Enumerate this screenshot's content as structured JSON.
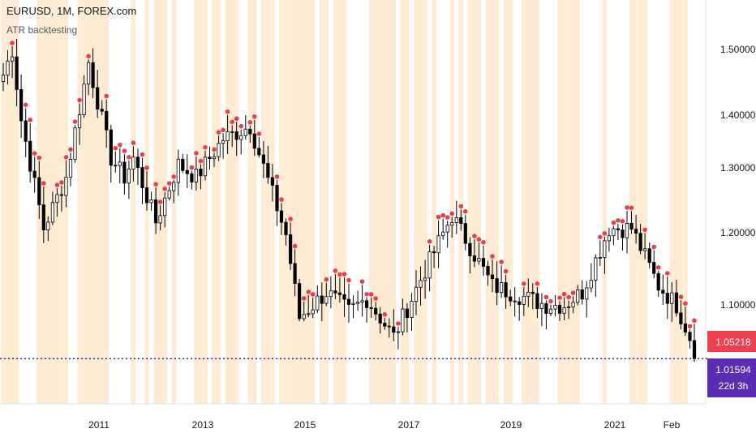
{
  "header": {
    "symbol_line": "EURUSD, 1M, FOREX.com",
    "indicator_name": "ATR backtesting"
  },
  "price_tags": {
    "last_bar": "1.05218",
    "current": "1.01594",
    "countdown": "22d 3h"
  },
  "colors": {
    "up_body": "#ffffff",
    "down_body": "#000000",
    "candle_outline": "#000000",
    "marker": "#e5404f",
    "highlight_band": "#fdebd3",
    "current_line": "#2a2e8f",
    "tag_red": "#ef4050",
    "tag_purple": "#5b2db2"
  },
  "chart_data": {
    "type": "candlestick",
    "title": "EURUSD, 1M, FOREX.com",
    "indicator": "ATR backtesting",
    "y_ticks": [
      "1.50000",
      "1.40000",
      "1.30000",
      "1.20000",
      "1.10000"
    ],
    "x_ticks": [
      "2011",
      "2013",
      "2015",
      "2017",
      "2019",
      "2021",
      "Feb"
    ],
    "ylim": [
      0.985,
      1.555
    ],
    "last_price": 1.05218,
    "current_price": 1.01594,
    "path_key_points": [
      [
        "2009-09",
        1.46
      ],
      [
        "2009-11",
        1.5
      ],
      [
        "2010-01",
        1.39
      ],
      [
        "2010-06",
        1.22
      ],
      [
        "2010-11",
        1.3
      ],
      [
        "2011-04",
        1.48
      ],
      [
        "2011-09",
        1.33
      ],
      [
        "2011-12",
        1.3
      ],
      [
        "2012-02",
        1.33
      ],
      [
        "2012-07",
        1.23
      ],
      [
        "2012-12",
        1.32
      ],
      [
        "2013-04",
        1.3
      ],
      [
        "2013-10",
        1.36
      ],
      [
        "2014-04",
        1.38
      ],
      [
        "2014-12",
        1.21
      ],
      [
        "2015-03",
        1.08
      ],
      [
        "2015-09",
        1.12
      ],
      [
        "2016-02",
        1.09
      ],
      [
        "2016-06",
        1.11
      ],
      [
        "2016-12",
        1.05
      ],
      [
        "2017-06",
        1.14
      ],
      [
        "2018-01",
        1.24
      ],
      [
        "2018-10",
        1.13
      ],
      [
        "2019-10",
        1.1
      ],
      [
        "2020-02",
        1.1
      ],
      [
        "2020-06",
        1.12
      ],
      [
        "2020-12",
        1.22
      ],
      [
        "2021-05",
        1.22
      ],
      [
        "2021-11",
        1.13
      ],
      [
        "2022-03",
        1.1
      ],
      [
        "2022-06",
        1.05
      ],
      [
        "2022-07",
        1.016
      ]
    ]
  }
}
